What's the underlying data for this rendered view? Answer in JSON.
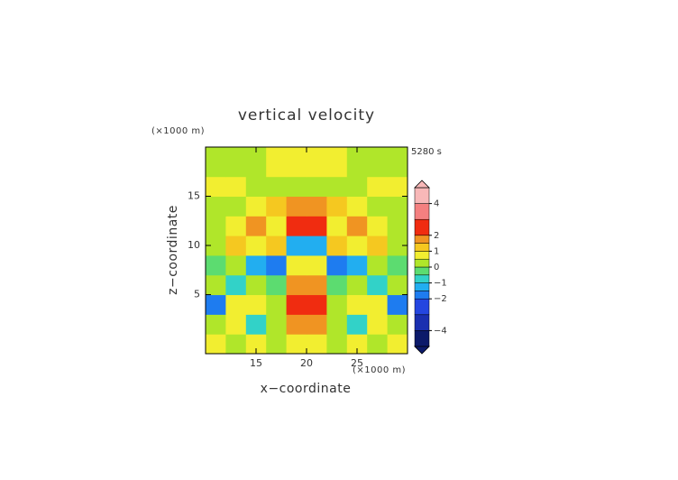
{
  "chart_data": {
    "type": "contour",
    "title": "vertical velocity",
    "x_label": "x−coordinate",
    "y_label": "z−coordinate",
    "x_unit_label": "(×1000 m)",
    "y_unit_label": "(×1000 m)",
    "time_label": "5280 s",
    "xlim": [
      10,
      30
    ],
    "ylim": [
      -1,
      20
    ],
    "xticks": [
      15,
      20,
      25
    ],
    "yticks": [
      5,
      10,
      15
    ],
    "xedges": [
      10,
      12,
      14,
      16,
      18,
      20,
      22,
      24,
      26,
      28,
      30
    ],
    "yedges": [
      -1,
      1,
      3,
      5,
      7,
      9,
      11,
      13,
      15,
      17,
      20
    ],
    "z": [
      [
        0.6,
        0.3,
        0.7,
        0.2,
        0.8,
        0.8,
        0.2,
        0.7,
        0.3,
        0.6
      ],
      [
        0.3,
        0.8,
        -0.6,
        0.4,
        1.8,
        1.8,
        0.4,
        -0.6,
        0.8,
        0.3
      ],
      [
        -1.8,
        0.6,
        0.7,
        0.3,
        2.5,
        2.5,
        0.3,
        0.7,
        0.6,
        -1.8
      ],
      [
        0.3,
        -0.8,
        0.2,
        -0.3,
        1.7,
        1.7,
        -0.3,
        0.2,
        -0.8,
        0.3
      ],
      [
        -0.3,
        0.2,
        -1.2,
        -1.7,
        0.8,
        0.8,
        -1.7,
        -1.2,
        0.2,
        -0.3
      ],
      [
        0.4,
        1.2,
        0.6,
        1.0,
        -1.3,
        -1.3,
        1.0,
        0.6,
        1.2,
        0.4
      ],
      [
        0.3,
        0.8,
        1.5,
        0.9,
        2.2,
        2.2,
        0.9,
        1.5,
        0.8,
        0.3
      ],
      [
        0.2,
        0.3,
        0.6,
        1.3,
        1.6,
        1.6,
        1.3,
        0.6,
        0.3,
        0.2
      ],
      [
        0.6,
        0.6,
        0.4,
        0.3,
        0.3,
        0.3,
        0.3,
        0.4,
        0.6,
        0.6
      ],
      [
        0.2,
        0.2,
        0.3,
        0.6,
        0.7,
        0.7,
        0.6,
        0.3,
        0.2,
        0.2
      ]
    ],
    "levels": [
      -5,
      -4,
      -3,
      -2,
      -1.5,
      -1,
      -0.5,
      0,
      0.5,
      1,
      1.5,
      2,
      3,
      4,
      5
    ],
    "colors": [
      "#0c1a6a",
      "#1a2fb0",
      "#2446e0",
      "#1e7cf0",
      "#22aef0",
      "#32d2c8",
      "#5cdc70",
      "#b0e62a",
      "#f2ee30",
      "#f5c820",
      "#f09422",
      "#f02c10",
      "#f48080",
      "#f8b8b8"
    ],
    "colorbar_lim": [
      -5,
      5
    ],
    "colorbar_ticks": [
      {
        "value": 4,
        "label": "4"
      },
      {
        "value": 2,
        "label": "2"
      },
      {
        "value": 1,
        "label": "1"
      },
      {
        "value": 0,
        "label": "0"
      },
      {
        "value": -1,
        "label": "−1"
      },
      {
        "value": -2,
        "label": "−2"
      },
      {
        "value": -4,
        "label": "−4"
      }
    ]
  }
}
